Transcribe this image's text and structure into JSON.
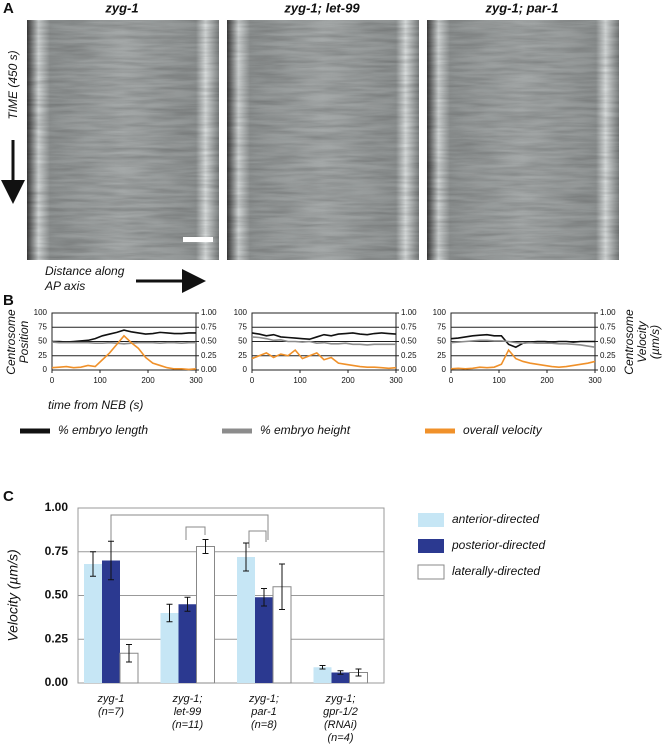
{
  "panel_a": {
    "label": "A",
    "titles": [
      "zyg-1",
      "zyg-1; let-99",
      "zyg-1; par-1"
    ],
    "y_label": "TIME (450 s)",
    "x_label": [
      "Distance along",
      "AP axis"
    ]
  },
  "panel_b": {
    "label": "B"
  },
  "panel_c": {
    "label": "C"
  },
  "chart_data": [
    {
      "type": "line",
      "y_label": [
        "Centrosome",
        "Position"
      ],
      "x_label": "time from NEB (s)",
      "x": [
        0,
        15,
        30,
        45,
        60,
        75,
        90,
        105,
        120,
        135,
        150,
        165,
        180,
        195,
        210,
        225,
        240,
        255,
        270,
        285,
        300
      ],
      "xlim": [
        0,
        300
      ],
      "xticks": [
        0,
        100,
        200,
        300
      ],
      "ylim": [
        0,
        100
      ],
      "yticks": [
        0,
        25,
        50,
        75,
        100
      ],
      "y2lim": [
        0,
        1
      ],
      "y2ticks": [
        {
          "value": 0,
          "label": "0.00"
        },
        {
          "value": 0.25,
          "label": "0.25"
        },
        {
          "value": 0.5,
          "label": "0.50"
        },
        {
          "value": 0.75,
          "label": "0.75"
        },
        {
          "value": 1,
          "label": "1.00"
        }
      ],
      "series": [
        {
          "name": "% embryo length",
          "color": "#111111",
          "values": [
            50,
            50,
            49,
            50,
            51,
            52,
            55,
            60,
            63,
            66,
            70,
            67,
            65,
            63,
            64,
            66,
            65,
            64,
            64,
            65,
            65
          ]
        },
        {
          "name": "% embryo height",
          "color": "#8c8c8c",
          "values": [
            49,
            48,
            48,
            48,
            48,
            48,
            47,
            47,
            48,
            47,
            46,
            47,
            48,
            48,
            48,
            47,
            48,
            48,
            47,
            48,
            48
          ]
        },
        {
          "name": "overall velocity",
          "color": "#f0912a",
          "axis": "y2",
          "values": [
            0.04,
            0.05,
            0.06,
            0.04,
            0.05,
            0.08,
            0.06,
            0.18,
            0.3,
            0.45,
            0.6,
            0.48,
            0.38,
            0.22,
            0.12,
            0.08,
            0.04,
            0.02,
            0.02,
            0.01,
            0.02
          ]
        }
      ]
    },
    {
      "type": "line",
      "x": [
        0,
        15,
        30,
        45,
        60,
        75,
        90,
        105,
        120,
        135,
        150,
        165,
        180,
        195,
        210,
        225,
        240,
        255,
        270,
        285,
        300
      ],
      "xlim": [
        0,
        300
      ],
      "xticks": [
        0,
        100,
        200,
        300
      ],
      "ylim": [
        0,
        100
      ],
      "yticks": [
        0,
        25,
        50,
        75,
        100
      ],
      "y2lim": [
        0,
        1
      ],
      "y2ticks": [
        {
          "value": 0,
          "label": "0.00"
        },
        {
          "value": 0.25,
          "label": "0.25"
        },
        {
          "value": 0.5,
          "label": "0.50"
        },
        {
          "value": 0.75,
          "label": "0.75"
        },
        {
          "value": 1,
          "label": "1.00"
        }
      ],
      "series": [
        {
          "color": "#111111",
          "values": [
            65,
            63,
            60,
            62,
            58,
            57,
            56,
            55,
            54,
            58,
            62,
            60,
            63,
            64,
            65,
            63,
            62,
            64,
            65,
            64,
            63
          ]
        },
        {
          "color": "#8c8c8c",
          "values": [
            58,
            57,
            55,
            52,
            53,
            50,
            50,
            49,
            50,
            47,
            48,
            46,
            46,
            47,
            45,
            45,
            44,
            45,
            45,
            45,
            45
          ]
        },
        {
          "color": "#f0912a",
          "axis": "y2",
          "values": [
            0.2,
            0.25,
            0.3,
            0.22,
            0.28,
            0.25,
            0.35,
            0.2,
            0.25,
            0.3,
            0.18,
            0.22,
            0.12,
            0.1,
            0.08,
            0.06,
            0.05,
            0.05,
            0.04,
            0.03,
            0.04
          ]
        }
      ]
    },
    {
      "type": "line",
      "y2_label": [
        "Centrosome",
        "Velocity",
        "(µm/s)"
      ],
      "x": [
        0,
        15,
        30,
        45,
        60,
        75,
        90,
        105,
        120,
        135,
        150,
        165,
        180,
        195,
        210,
        225,
        240,
        255,
        270,
        285,
        300
      ],
      "xlim": [
        0,
        300
      ],
      "xticks": [
        0,
        100,
        200,
        300
      ],
      "ylim": [
        0,
        100
      ],
      "yticks": [
        0,
        25,
        50,
        75,
        100
      ],
      "y2lim": [
        0,
        1
      ],
      "y2ticks": [
        {
          "value": 0,
          "label": "0.00"
        },
        {
          "value": 0.25,
          "label": "0.25"
        },
        {
          "value": 0.5,
          "label": "0.50"
        },
        {
          "value": 0.75,
          "label": "0.75"
        },
        {
          "value": 1,
          "label": "1.00"
        }
      ],
      "series": [
        {
          "color": "#111111",
          "values": [
            55,
            56,
            58,
            60,
            61,
            62,
            60,
            60,
            45,
            40,
            47,
            49,
            50,
            50,
            49,
            50,
            50,
            49,
            50,
            50,
            50
          ]
        },
        {
          "color": "#8c8c8c",
          "values": [
            48,
            49,
            50,
            51,
            52,
            52,
            51,
            51,
            50,
            48,
            47,
            48,
            47,
            47,
            47,
            46,
            46,
            45,
            44,
            42,
            40
          ]
        },
        {
          "color": "#f0912a",
          "axis": "y2",
          "values": [
            0.02,
            0.03,
            0.02,
            0.03,
            0.05,
            0.04,
            0.05,
            0.1,
            0.35,
            0.2,
            0.15,
            0.12,
            0.1,
            0.08,
            0.06,
            0.05,
            0.06,
            0.08,
            0.1,
            0.12,
            0.15
          ]
        }
      ]
    },
    {
      "type": "bar",
      "y_label": "Velocity (µm/s)",
      "categories": [
        [
          "zyg-1",
          "(n=7)"
        ],
        [
          "zyg-1;",
          "let-99",
          "(n=11)"
        ],
        [
          "zyg-1;",
          "par-1",
          "(n=8)"
        ],
        [
          "zyg-1;",
          "gpr-1/2",
          "(RNAi)",
          "(n=4)"
        ]
      ],
      "ylim": [
        0,
        1
      ],
      "yticks": [
        {
          "value": 0,
          "label": "0.00"
        },
        {
          "value": 0.25,
          "label": "0.25"
        },
        {
          "value": 0.5,
          "label": "0.50"
        },
        {
          "value": 0.75,
          "label": "0.75"
        },
        {
          "value": 1,
          "label": "1.00"
        }
      ],
      "grid": true,
      "series": [
        {
          "name": "anterior-directed",
          "color": "#c6e6f5",
          "values": [
            0.68,
            0.4,
            0.72,
            0.09
          ],
          "errors": [
            0.07,
            0.05,
            0.08,
            0.01
          ]
        },
        {
          "name": "posterior-directed",
          "color": "#2b3990",
          "values": [
            0.7,
            0.45,
            0.49,
            0.06
          ],
          "errors": [
            0.11,
            0.04,
            0.05,
            0.01
          ]
        },
        {
          "name": "laterally-directed",
          "color": "#ffffff",
          "values": [
            0.17,
            0.78,
            0.55,
            0.06
          ],
          "errors": [
            0.05,
            0.04,
            0.13,
            0.02
          ]
        }
      ]
    }
  ]
}
